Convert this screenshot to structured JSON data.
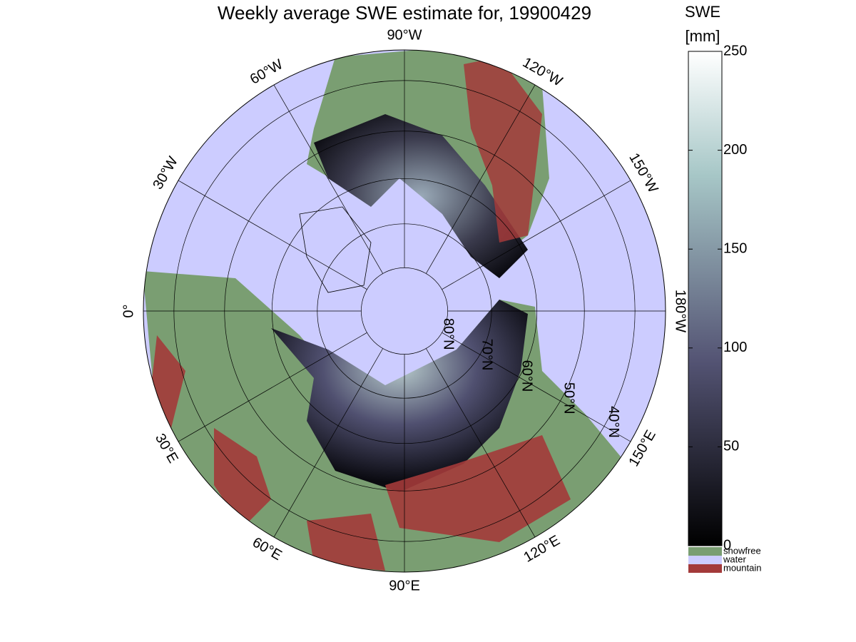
{
  "title": "Weekly average SWE estimate for, 19900429",
  "colorbar": {
    "label": [
      "SWE",
      "[mm]"
    ],
    "lim": [
      0,
      250
    ],
    "ticks": [
      0,
      50,
      100,
      150,
      200,
      250
    ]
  },
  "legend": [
    {
      "name": "snowfree",
      "color": "#7a9e72"
    },
    {
      "name": "water",
      "color": "#ccccff"
    },
    {
      "name": "mountain",
      "color": "#a33a3a"
    }
  ],
  "meridians": [
    {
      "lon": -90,
      "label": "90°W"
    },
    {
      "lon": -120,
      "label": "120°W"
    },
    {
      "lon": -150,
      "label": "150°W"
    },
    {
      "lon": 180,
      "label": "180°W"
    },
    {
      "lon": 150,
      "label": "150°E"
    },
    {
      "lon": 120,
      "label": "120°E"
    },
    {
      "lon": 90,
      "label": "90°E"
    },
    {
      "lon": 60,
      "label": "60°E"
    },
    {
      "lon": 30,
      "label": "30°E"
    },
    {
      "lon": 0,
      "label": "0°"
    },
    {
      "lon": -30,
      "label": "30°W"
    },
    {
      "lon": -60,
      "label": "60°W"
    }
  ],
  "parallels": [
    {
      "lat": 80,
      "label": "80°N"
    },
    {
      "lat": 70,
      "label": "70°N"
    },
    {
      "lat": 60,
      "label": "60°N"
    },
    {
      "lat": 50,
      "label": "50°N"
    },
    {
      "lat": 40,
      "label": "40°N"
    }
  ]
}
